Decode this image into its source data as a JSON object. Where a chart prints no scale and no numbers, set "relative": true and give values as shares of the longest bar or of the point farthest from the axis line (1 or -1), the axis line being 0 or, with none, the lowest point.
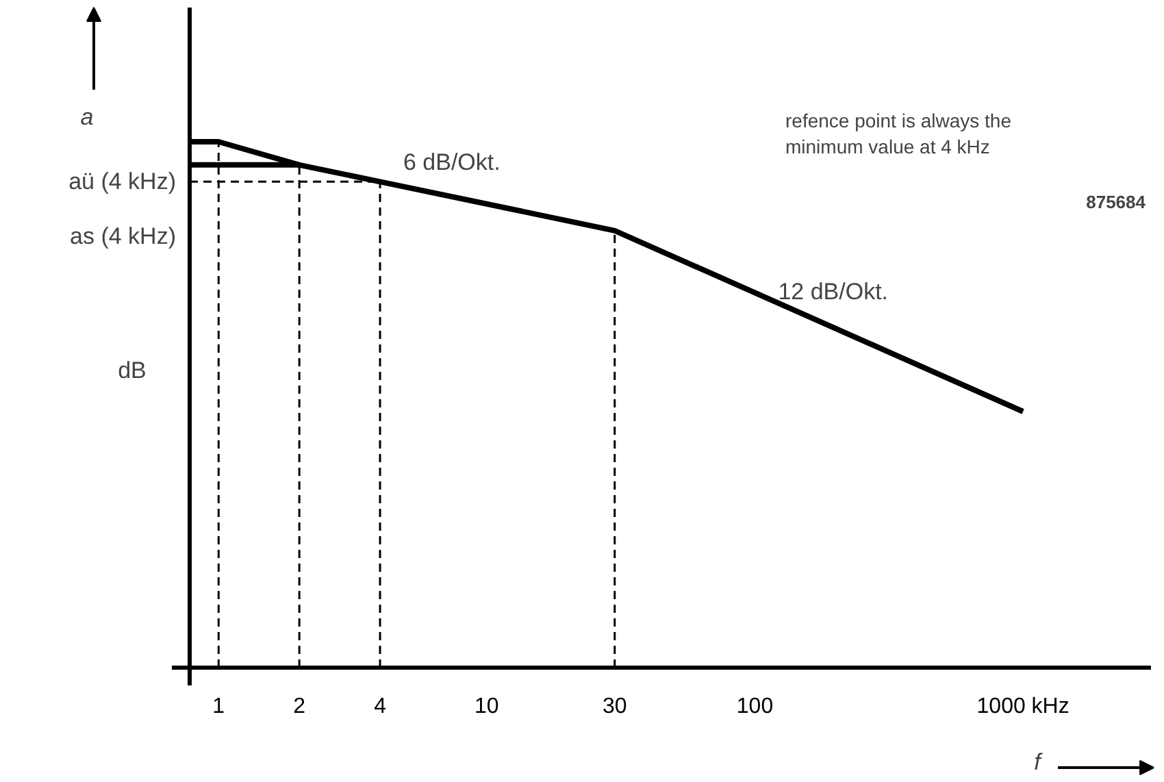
{
  "chart_data": {
    "type": "line",
    "relative": true,
    "log": "x",
    "grid": false,
    "ylabel": "a",
    "xlabel": "f",
    "xlim": [
      0.78,
      3000
    ],
    "ref_lines": [
      {
        "axis": "x",
        "value": 0.78,
        "color": "#000000"
      }
    ],
    "xticks": [
      1,
      2,
      4,
      10,
      30,
      100,
      {
        "value": 1000,
        "label": "1000 kHz"
      }
    ],
    "series": [
      {
        "color": "#000000",
        "x": [
          0.78,
          1,
          2,
          4,
          30,
          1000
        ],
        "values": [
          1,
          1,
          0.956,
          0.924,
          0.831,
          0.487
        ]
      },
      {
        "color": "#000000",
        "x": [
          0.78,
          2
        ],
        "values": [
          0.956,
          0.956
        ]
      },
      {
        "color": "#000000",
        "x": [
          0.78,
          4
        ],
        "values": [
          0.924,
          0.924
        ],
        "line_style": "dashed"
      },
      {
        "color": "#000000",
        "x": [
          1,
          1
        ],
        "values": [
          0,
          1
        ],
        "line_style": "dashed"
      },
      {
        "color": "#000000",
        "x": [
          2,
          2
        ],
        "values": [
          0,
          0.956
        ],
        "line_style": "dashed"
      },
      {
        "color": "#000000",
        "x": [
          4,
          4
        ],
        "values": [
          0,
          0.924
        ],
        "line_style": "dashed"
      },
      {
        "color": "#000000",
        "x": [
          30,
          30
        ],
        "values": [
          0,
          0.831
        ],
        "line_style": "dashed"
      }
    ],
    "annotations": [
      {
        "text": "6 dB/Okt.",
        "x": 8,
        "y": 0.89
      },
      {
        "text": "12 dB/Okt.",
        "x": 200,
        "y": 0.645
      },
      "aü (4 kHz)",
      "as (4 kHz)",
      "dB",
      "refence point is always the minimum value at 4 kHz",
      "875684"
    ]
  }
}
